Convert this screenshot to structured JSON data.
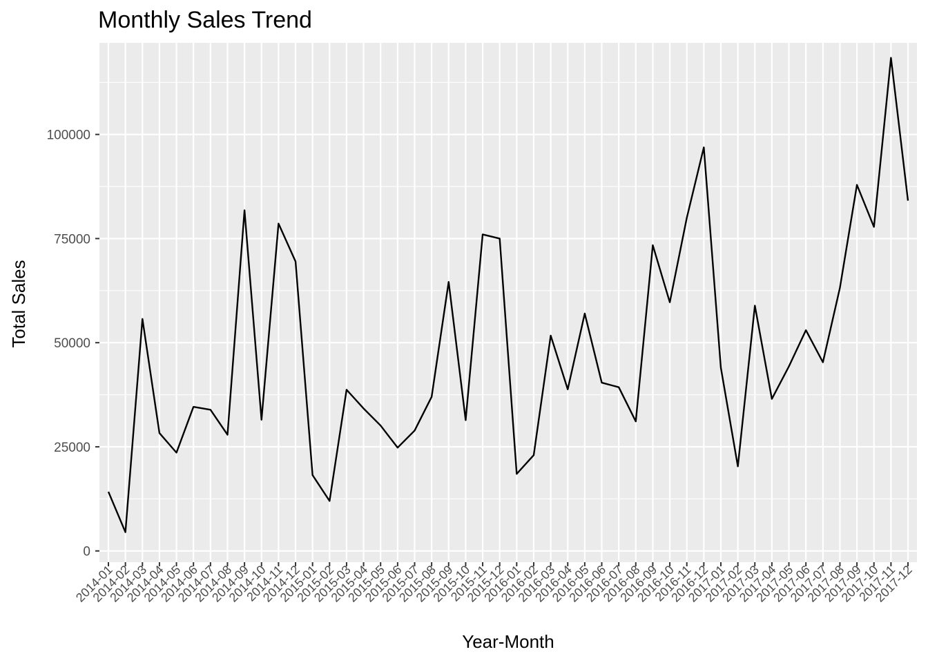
{
  "chart_data": {
    "type": "line",
    "title": "Monthly Sales Trend",
    "xlabel": "Year-Month",
    "ylabel": "Total Sales",
    "ylim": [
      0,
      120000
    ],
    "yticks": [
      0,
      25000,
      50000,
      75000,
      100000
    ],
    "grid": true,
    "colors": {
      "panel": "#ebebeb",
      "grid": "#ffffff",
      "line": "#000000",
      "tick": "#4d4d4d"
    },
    "categories": [
      "2014-01",
      "2014-02",
      "2014-03",
      "2014-04",
      "2014-05",
      "2014-06",
      "2014-07",
      "2014-08",
      "2014-09",
      "2014-10",
      "2014-11",
      "2014-12",
      "2015-01",
      "2015-02",
      "2015-03",
      "2015-04",
      "2015-05",
      "2015-06",
      "2015-07",
      "2015-08",
      "2015-09",
      "2015-10",
      "2015-11",
      "2015-12",
      "2016-01",
      "2016-02",
      "2016-03",
      "2016-04",
      "2016-05",
      "2016-06",
      "2016-07",
      "2016-08",
      "2016-09",
      "2016-10",
      "2016-11",
      "2016-12",
      "2017-01",
      "2017-02",
      "2017-03",
      "2017-04",
      "2017-05",
      "2017-06",
      "2017-07",
      "2017-08",
      "2017-09",
      "2017-10",
      "2017-11",
      "2017-12"
    ],
    "series": [
      {
        "values": [
          14200,
          4500,
          55700,
          28300,
          23600,
          34600,
          33900,
          27900,
          81800,
          31500,
          78600,
          69500,
          18200,
          12000,
          38700,
          34200,
          30100,
          24800,
          28900,
          37000,
          64600,
          31400,
          76000,
          75000,
          18500,
          23000,
          51700,
          38800,
          57000,
          40400,
          39300,
          31100,
          73400,
          59700,
          80000,
          96900,
          44000,
          20300,
          58900,
          36500,
          44300,
          53000,
          45300,
          63200,
          87900,
          77800,
          118400,
          84100
        ]
      }
    ]
  }
}
